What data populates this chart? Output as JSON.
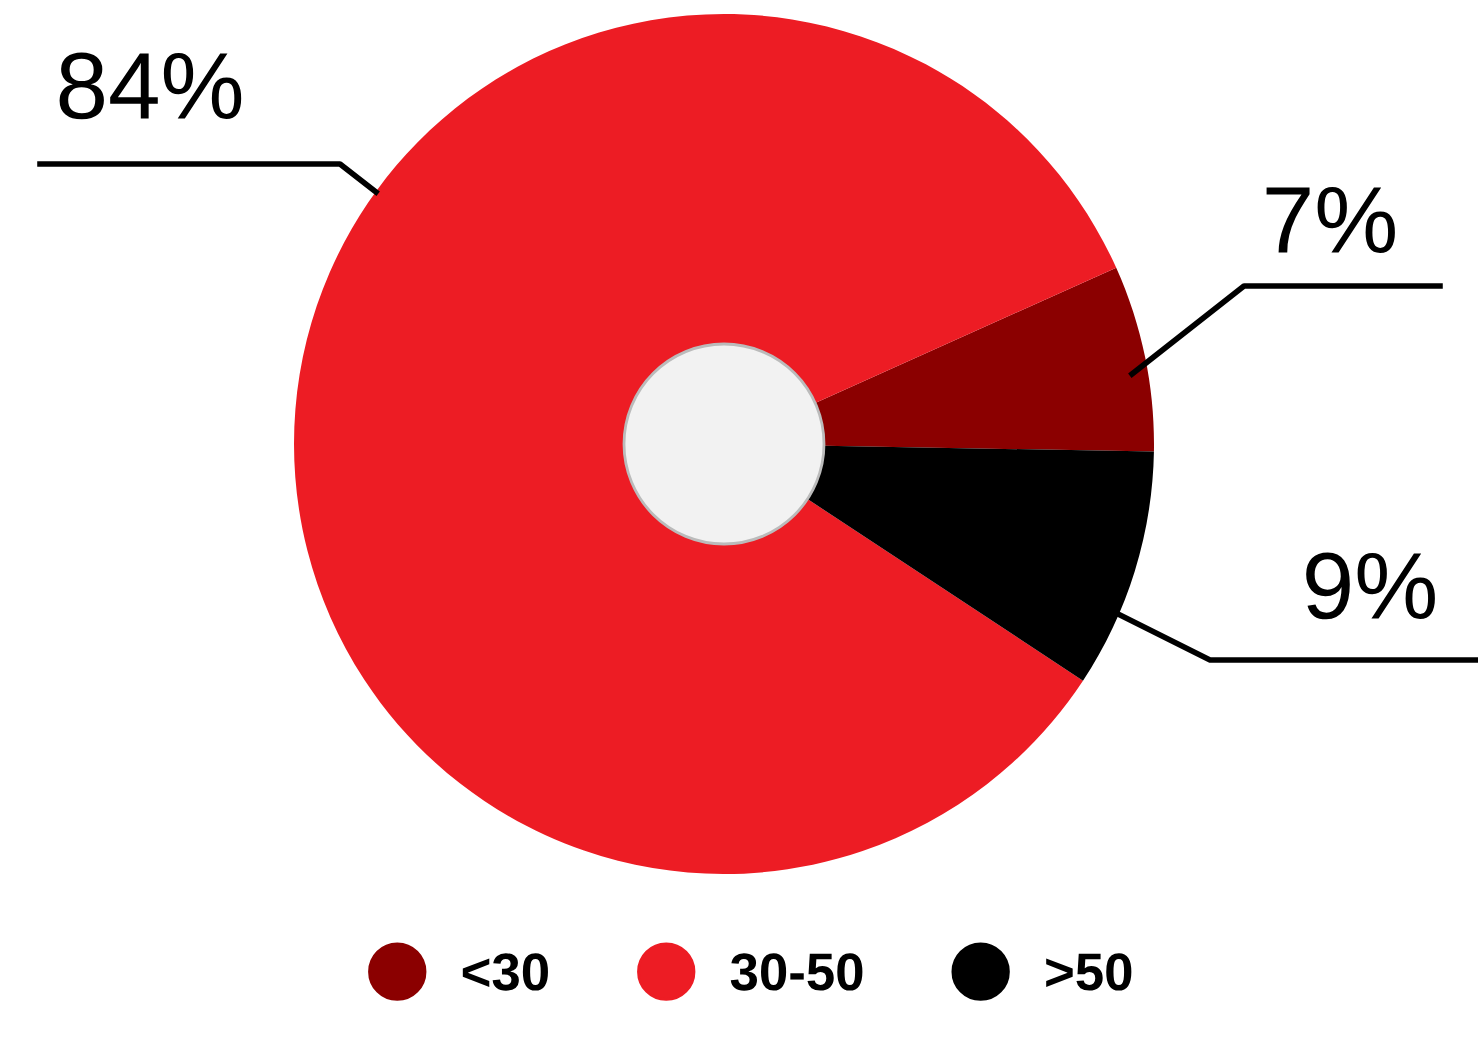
{
  "chart_data": {
    "type": "donut",
    "categories": [
      "<30",
      "30-50",
      ">50"
    ],
    "values": [
      7,
      84,
      9
    ],
    "colors": [
      "#8b0000",
      "#ed1c24",
      "#000000"
    ],
    "value_labels": [
      "7%",
      "84%",
      "9%"
    ],
    "legend": "bottom"
  }
}
